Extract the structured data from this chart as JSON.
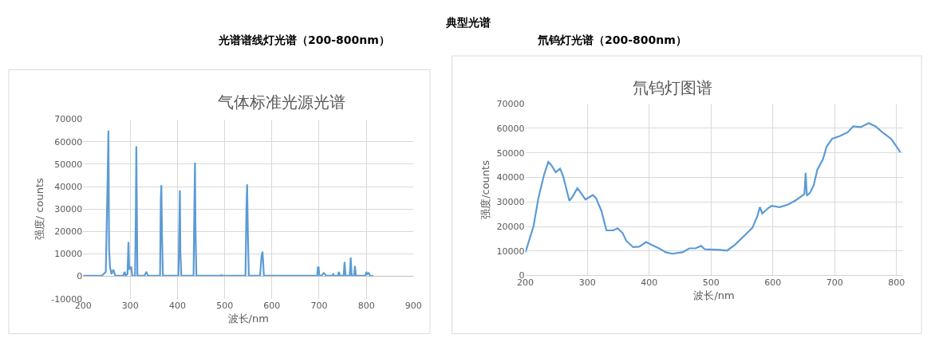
{
  "chart_data": [
    {
      "type": "line",
      "title": "气体标准光源光谱",
      "xlabel": "波长/nm",
      "ylabel": "强度/ counts",
      "annotations": [
        "典型光谱",
        "光谱谱线灯光谱（200-800nm）"
      ],
      "xlim": [
        200,
        900
      ],
      "xticks": [
        200,
        300,
        400,
        500,
        600,
        700,
        800,
        900
      ],
      "ylim": [
        -10000,
        70000
      ],
      "yticks": [
        -10000,
        0,
        10000,
        20000,
        30000,
        40000,
        50000,
        60000,
        70000
      ],
      "grid": true,
      "marker": "none",
      "line_style": "solid",
      "series": [
        {
          "color": "#5b9bd5",
          "x": [
            200,
            240,
            248,
            251,
            252,
            253.6,
            254.5,
            255,
            257,
            260,
            264,
            268,
            285,
            288,
            290,
            294,
            296,
            297.5,
            300,
            302,
            304,
            310,
            311.5,
            312.7,
            313.5,
            315,
            330,
            334,
            337,
            363,
            364.5,
            365.7,
            367,
            369,
            402,
            403.5,
            405,
            406,
            408,
            434,
            435.5,
            437,
            438,
            440,
            490,
            493,
            496,
            544,
            546,
            547.5,
            549,
            551,
            575,
            578,
            580,
            581,
            583,
            696,
            697.5,
            699,
            700.5,
            705,
            710,
            715,
            728,
            730,
            732,
            740,
            742,
            744,
            752,
            754,
            756,
            765,
            767,
            769,
            774,
            776,
            778,
            798,
            800,
            802,
            805,
            808,
            815
          ],
          "values": [
            300,
            300,
            2000,
            34000,
            45000,
            65000,
            30000,
            12000,
            4000,
            1000,
            3000,
            300,
            300,
            2000,
            300,
            1000,
            15300,
            3000,
            4000,
            4000,
            300,
            300,
            25000,
            58000,
            38000,
            300,
            300,
            2000,
            300,
            300,
            34000,
            40600,
            20000,
            300,
            300,
            20000,
            38300,
            11000,
            300,
            300,
            28000,
            50700,
            22000,
            300,
            300,
            500,
            300,
            300,
            30000,
            41000,
            20000,
            300,
            300,
            9000,
            11000,
            8000,
            300,
            300,
            4000,
            4000,
            300,
            300,
            1500,
            300,
            300,
            1000,
            300,
            300,
            2000,
            300,
            300,
            6400,
            300,
            300,
            8400,
            300,
            300,
            4600,
            300,
            300,
            2000,
            1000,
            1500,
            300,
            200
          ]
        }
      ]
    },
    {
      "type": "line",
      "title": "氘钨灯图谱",
      "xlabel": "波长/nm",
      "ylabel": "强度/counts",
      "annotations": [
        "氘钨灯光谱（200-800nm）"
      ],
      "xlim": [
        200,
        810
      ],
      "xticks": [
        200,
        300,
        400,
        500,
        600,
        700,
        800
      ],
      "ylim": [
        0,
        70000
      ],
      "yticks": [
        0,
        10000,
        20000,
        30000,
        40000,
        50000,
        60000,
        70000
      ],
      "grid": true,
      "marker": "none",
      "line_style": "solid",
      "series": [
        {
          "color": "#5b9bd5",
          "x": [
            200,
            213,
            221,
            230,
            237,
            242,
            249,
            256,
            261,
            271,
            276,
            284,
            291,
            297,
            309,
            314,
            323,
            331,
            342,
            349,
            357,
            363,
            374,
            384,
            395,
            405,
            416,
            427,
            437,
            454,
            465,
            475,
            484,
            490,
            514,
            526,
            539,
            556,
            567,
            575,
            579,
            583,
            592,
            598,
            611,
            624,
            636,
            645,
            651,
            653,
            655,
            660,
            666,
            672,
            681,
            687,
            696,
            708,
            721,
            730,
            742,
            755,
            766,
            777,
            791,
            800,
            806
          ],
          "values": [
            9500,
            20000,
            31600,
            41000,
            46300,
            45000,
            42100,
            43600,
            40500,
            30500,
            32100,
            35600,
            33200,
            31000,
            32800,
            31600,
            26300,
            18400,
            18400,
            19300,
            17400,
            14200,
            11600,
            11800,
            13700,
            12400,
            11100,
            9500,
            8900,
            9500,
            11100,
            11100,
            12100,
            10700,
            10500,
            10200,
            12600,
            16800,
            19500,
            24200,
            27900,
            25300,
            27400,
            28400,
            27900,
            28900,
            30500,
            32100,
            33200,
            41900,
            32600,
            33700,
            36800,
            43200,
            47400,
            52600,
            55800,
            56800,
            58400,
            60800,
            60500,
            62100,
            60800,
            58400,
            55800,
            52600,
            50300
          ]
        }
      ]
    }
  ]
}
